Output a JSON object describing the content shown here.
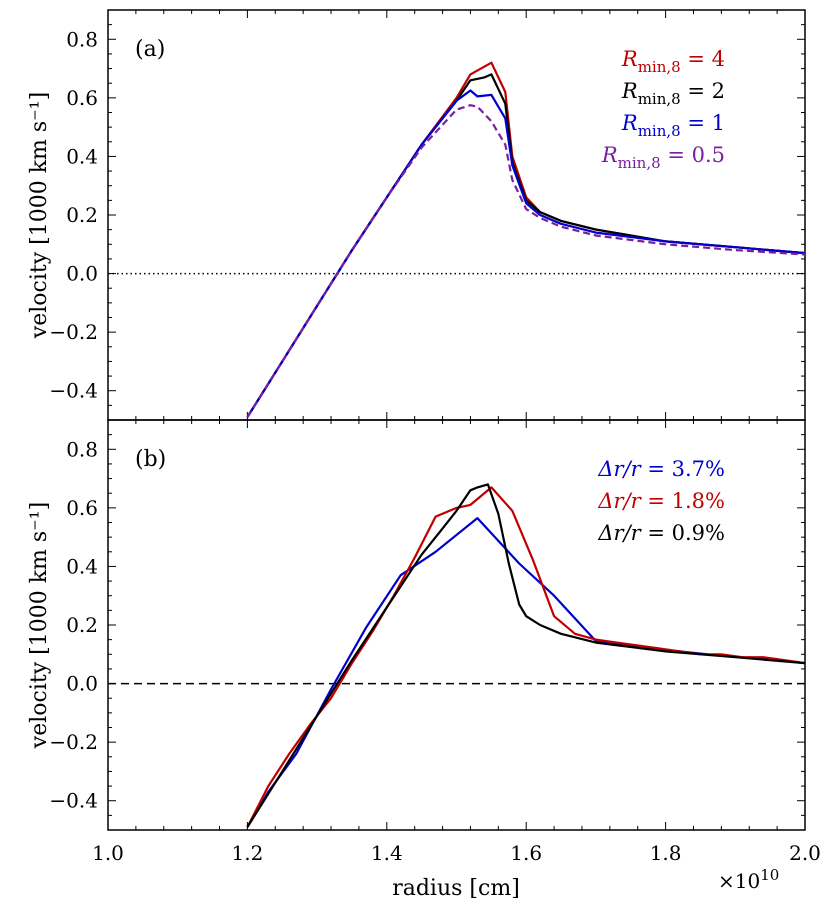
{
  "figure": {
    "xlabel": "radius [cm]",
    "x_exponent_label": "×10",
    "x_exponent_power": "10"
  },
  "chart_data": [
    {
      "type": "line",
      "panel_label": "(a)",
      "xlabel": "radius [cm]",
      "ylabel": "velocity [1000 km s⁻¹]",
      "xlim": [
        1.0,
        2.0
      ],
      "ylim": [
        -0.5,
        0.9
      ],
      "x_tick_labels": [
        "1.0",
        "1.2",
        "1.4",
        "1.6",
        "1.8",
        "2.0"
      ],
      "y_tick_labels": [
        "−0.4",
        "−0.2",
        "0.0",
        "0.2",
        "0.4",
        "0.6",
        "0.8"
      ],
      "reference_line": {
        "y": 0.0,
        "style": "dotted"
      },
      "legend_position": "top-right",
      "series": [
        {
          "name": "R_min,8 = 4",
          "color": "#c00000",
          "dash": "solid",
          "x": [
            1.2,
            1.25,
            1.3,
            1.35,
            1.4,
            1.45,
            1.5,
            1.52,
            1.55,
            1.57,
            1.58,
            1.6,
            1.62,
            1.65,
            1.7,
            1.8,
            1.9,
            2.0
          ],
          "y": [
            -0.49,
            -0.3,
            -0.11,
            0.08,
            0.26,
            0.44,
            0.6,
            0.68,
            0.72,
            0.62,
            0.4,
            0.26,
            0.21,
            0.18,
            0.15,
            0.11,
            0.09,
            0.07
          ]
        },
        {
          "name": "R_min,8 = 2",
          "color": "#000000",
          "dash": "solid",
          "x": [
            1.2,
            1.25,
            1.3,
            1.35,
            1.4,
            1.45,
            1.5,
            1.52,
            1.54,
            1.55,
            1.57,
            1.58,
            1.6,
            1.62,
            1.65,
            1.7,
            1.8,
            1.9,
            2.0
          ],
          "y": [
            -0.49,
            -0.3,
            -0.11,
            0.08,
            0.26,
            0.44,
            0.59,
            0.66,
            0.67,
            0.68,
            0.58,
            0.38,
            0.25,
            0.21,
            0.18,
            0.15,
            0.11,
            0.09,
            0.07
          ]
        },
        {
          "name": "R_min,8 = 1",
          "color": "#0000cc",
          "dash": "solid",
          "x": [
            1.2,
            1.25,
            1.3,
            1.35,
            1.4,
            1.45,
            1.5,
            1.52,
            1.53,
            1.55,
            1.57,
            1.58,
            1.6,
            1.62,
            1.65,
            1.7,
            1.8,
            1.9,
            2.0
          ],
          "y": [
            -0.49,
            -0.3,
            -0.11,
            0.08,
            0.26,
            0.44,
            0.59,
            0.625,
            0.605,
            0.61,
            0.53,
            0.37,
            0.24,
            0.2,
            0.17,
            0.14,
            0.11,
            0.09,
            0.07
          ]
        },
        {
          "name": "R_min,8 = 0.5",
          "color": "#7b1fa2",
          "dash": "dashed",
          "x": [
            1.2,
            1.25,
            1.3,
            1.35,
            1.4,
            1.45,
            1.5,
            1.52,
            1.53,
            1.55,
            1.57,
            1.58,
            1.6,
            1.62,
            1.65,
            1.7,
            1.8,
            1.9,
            2.0
          ],
          "y": [
            -0.49,
            -0.3,
            -0.11,
            0.08,
            0.26,
            0.43,
            0.56,
            0.575,
            0.57,
            0.52,
            0.44,
            0.32,
            0.22,
            0.19,
            0.16,
            0.13,
            0.1,
            0.08,
            0.065
          ]
        }
      ],
      "legend": [
        {
          "base": "R",
          "sub": "min,8",
          "value": " = 4",
          "color": "#c00000"
        },
        {
          "base": "R",
          "sub": "min,8",
          "value": " = 2",
          "color": "#000000"
        },
        {
          "base": "R",
          "sub": "min,8",
          "value": " = 1",
          "color": "#0000cc"
        },
        {
          "base": "R",
          "sub": "min,8",
          "value": " = 0.5",
          "color": "#7b1fa2"
        }
      ]
    },
    {
      "type": "line",
      "panel_label": "(b)",
      "xlabel": "radius [cm]",
      "ylabel": "velocity [1000 km s⁻¹]",
      "xlim": [
        1.0,
        2.0
      ],
      "ylim": [
        -0.5,
        0.9
      ],
      "x_tick_labels": [
        "1.0",
        "1.2",
        "1.4",
        "1.6",
        "1.8",
        "2.0"
      ],
      "y_tick_labels": [
        "−0.4",
        "−0.2",
        "0.0",
        "0.2",
        "0.4",
        "0.6",
        "0.8"
      ],
      "reference_line": {
        "y": 0.0,
        "style": "dashed"
      },
      "legend_position": "top-right",
      "series": [
        {
          "name": "Δr/r = 3.7%",
          "color": "#0000cc",
          "dash": "solid",
          "x": [
            1.2,
            1.23,
            1.27,
            1.32,
            1.37,
            1.42,
            1.47,
            1.53,
            1.59,
            1.64,
            1.7,
            1.76,
            1.82,
            1.88,
            1.94,
            2.0
          ],
          "y": [
            -0.49,
            -0.37,
            -0.24,
            -0.02,
            0.19,
            0.37,
            0.45,
            0.565,
            0.41,
            0.3,
            0.145,
            0.125,
            0.11,
            0.095,
            0.085,
            0.07
          ]
        },
        {
          "name": "Δr/r = 1.8%",
          "color": "#c00000",
          "dash": "solid",
          "x": [
            1.2,
            1.23,
            1.26,
            1.29,
            1.32,
            1.35,
            1.38,
            1.41,
            1.44,
            1.47,
            1.5,
            1.52,
            1.55,
            1.58,
            1.61,
            1.64,
            1.67,
            1.7,
            1.73,
            1.76,
            1.79,
            1.82,
            1.85,
            1.88,
            1.91,
            1.94,
            1.97,
            2.0
          ],
          "y": [
            -0.49,
            -0.35,
            -0.24,
            -0.14,
            -0.05,
            0.07,
            0.18,
            0.3,
            0.43,
            0.57,
            0.6,
            0.61,
            0.67,
            0.59,
            0.42,
            0.23,
            0.17,
            0.15,
            0.14,
            0.13,
            0.12,
            0.11,
            0.1,
            0.1,
            0.09,
            0.09,
            0.08,
            0.07
          ]
        },
        {
          "name": "Δr/r = 0.9%",
          "color": "#000000",
          "dash": "solid",
          "x": [
            1.2,
            1.25,
            1.3,
            1.35,
            1.4,
            1.45,
            1.48,
            1.5,
            1.52,
            1.53,
            1.545,
            1.56,
            1.575,
            1.59,
            1.6,
            1.62,
            1.65,
            1.7,
            1.8,
            1.9,
            2.0
          ],
          "y": [
            -0.49,
            -0.3,
            -0.11,
            0.08,
            0.26,
            0.44,
            0.53,
            0.59,
            0.66,
            0.67,
            0.68,
            0.58,
            0.41,
            0.27,
            0.23,
            0.2,
            0.17,
            0.14,
            0.11,
            0.09,
            0.07
          ]
        }
      ],
      "legend": [
        {
          "base": "Δr/r",
          "sub": "",
          "value": " = 3.7%",
          "color": "#0000cc"
        },
        {
          "base": "Δr/r",
          "sub": "",
          "value": " = 1.8%",
          "color": "#c00000"
        },
        {
          "base": "Δr/r",
          "sub": "",
          "value": " = 0.9%",
          "color": "#000000"
        }
      ]
    }
  ]
}
